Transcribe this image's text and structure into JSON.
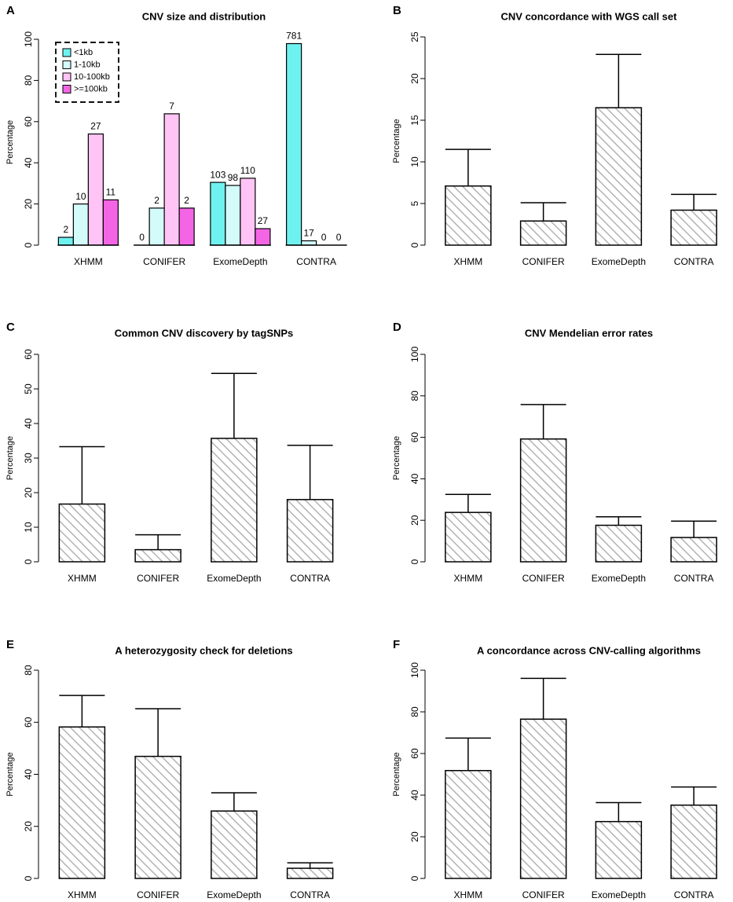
{
  "chart_data": [
    {
      "panel": "A",
      "type": "bar",
      "title": "CNV size and distribution",
      "xlabel": "",
      "ylabel": "Percentage",
      "ylim": [
        0,
        100
      ],
      "yticks": [
        0,
        20,
        40,
        60,
        80,
        100
      ],
      "categories": [
        "XHMM",
        "CONIFER",
        "ExomeDepth",
        "CONTRA"
      ],
      "legend_position": "top-left",
      "legend_border": "dashed",
      "series": [
        {
          "name": "<1kb",
          "color": "#6ef2f0",
          "values": [
            3.8,
            0,
            30.5,
            97.9
          ],
          "labels": [
            "2",
            "0",
            "103",
            "781"
          ]
        },
        {
          "name": "1-10kb",
          "color": "#d3fbfa",
          "values": [
            20,
            18,
            29,
            2.1
          ],
          "labels": [
            "10",
            "2",
            "98",
            "17"
          ]
        },
        {
          "name": "10-100kb",
          "color": "#ffc4f5",
          "values": [
            54,
            63.8,
            32.5,
            0
          ],
          "labels": [
            "27",
            "7",
            "110",
            "0"
          ]
        },
        {
          "name": ">=100kb",
          "color": "#f465e6",
          "values": [
            22,
            18,
            8,
            0
          ],
          "labels": [
            "11",
            "2",
            "27",
            "0"
          ]
        }
      ]
    },
    {
      "panel": "B",
      "type": "bar",
      "title": "CNV concordance with WGS call set",
      "xlabel": "",
      "ylabel": "Percentage",
      "ylim": [
        0,
        25
      ],
      "yticks": [
        0,
        5,
        10,
        15,
        20,
        25
      ],
      "categories": [
        "XHMM",
        "CONIFER",
        "ExomeDepth",
        "CONTRA"
      ],
      "values": [
        7.1,
        2.9,
        16.5,
        4.2
      ],
      "error_upper": [
        11.5,
        5.1,
        22.9,
        6.1
      ],
      "fill": "hatched"
    },
    {
      "panel": "C",
      "type": "bar",
      "title": "Common CNV discovery by tagSNPs",
      "xlabel": "",
      "ylabel": "Percentage",
      "ylim": [
        0,
        60
      ],
      "yticks": [
        0,
        10,
        20,
        30,
        40,
        50,
        60
      ],
      "categories": [
        "XHMM",
        "CONIFER",
        "ExomeDepth",
        "CONTRA"
      ],
      "values": [
        16.7,
        3.5,
        35.7,
        18.0
      ],
      "error_upper": [
        33.3,
        7.8,
        54.5,
        33.7
      ],
      "fill": "hatched"
    },
    {
      "panel": "D",
      "type": "bar",
      "title": "CNV Mendelian error rates",
      "xlabel": "",
      "ylabel": "Percentage",
      "ylim": [
        0,
        100
      ],
      "yticks": [
        0,
        20,
        40,
        60,
        80,
        100
      ],
      "categories": [
        "XHMM",
        "CONIFER",
        "ExomeDepth",
        "CONTRA"
      ],
      "values": [
        23.8,
        59.2,
        17.6,
        11.7
      ],
      "error_upper": [
        32.5,
        75.8,
        21.7,
        19.6
      ],
      "fill": "hatched"
    },
    {
      "panel": "E",
      "type": "bar",
      "title": "A heterozygosity check for deletions",
      "xlabel": "",
      "ylabel": "Percentage",
      "ylim": [
        0,
        80
      ],
      "yticks": [
        0,
        20,
        40,
        60,
        80
      ],
      "categories": [
        "XHMM",
        "CONIFER",
        "ExomeDepth",
        "CONTRA"
      ],
      "values": [
        58.2,
        46.9,
        25.9,
        3.9
      ],
      "error_upper": [
        70.3,
        65.2,
        32.9,
        6.0
      ],
      "fill": "hatched"
    },
    {
      "panel": "F",
      "type": "bar",
      "title": "A concordance across CNV-calling algorithms",
      "xlabel": "",
      "ylabel": "Percentage",
      "ylim": [
        0,
        100
      ],
      "yticks": [
        0,
        20,
        40,
        60,
        80,
        100
      ],
      "categories": [
        "XHMM",
        "CONIFER",
        "ExomeDepth",
        "CONTRA"
      ],
      "values": [
        51.8,
        76.5,
        27.3,
        35.2
      ],
      "error_upper": [
        67.4,
        96.1,
        36.4,
        43.9
      ],
      "fill": "hatched"
    }
  ],
  "style": {
    "bar_fill": "#ffffff",
    "hatch_color": "#a8a8a8",
    "axis_color": "#000000"
  }
}
